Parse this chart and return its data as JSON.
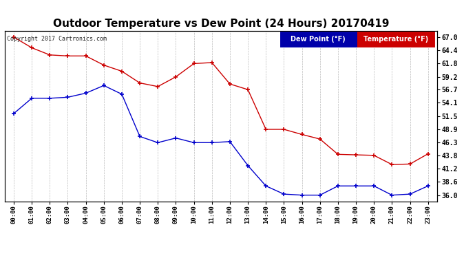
{
  "title": "Outdoor Temperature vs Dew Point (24 Hours) 20170419",
  "copyright": "Copyright 2017 Cartronics.com",
  "x_labels": [
    "00:00",
    "01:00",
    "02:00",
    "03:00",
    "04:00",
    "05:00",
    "06:00",
    "07:00",
    "08:00",
    "09:00",
    "10:00",
    "11:00",
    "12:00",
    "13:00",
    "14:00",
    "15:00",
    "16:00",
    "17:00",
    "18:00",
    "19:00",
    "20:00",
    "21:00",
    "22:00",
    "23:00"
  ],
  "y_ticks": [
    36.0,
    38.6,
    41.2,
    43.8,
    46.3,
    48.9,
    51.5,
    54.1,
    56.7,
    59.2,
    61.8,
    64.4,
    67.0
  ],
  "ylim": [
    34.8,
    68.2
  ],
  "temp_color": "#cc0000",
  "dew_color": "#0000cc",
  "temp_label": "Temperature (°F)",
  "dew_label": "Dew Point (°F)",
  "temperature": [
    67.0,
    64.9,
    63.5,
    63.3,
    63.3,
    61.5,
    60.3,
    58.0,
    57.3,
    59.2,
    61.8,
    62.0,
    57.8,
    56.7,
    48.9,
    48.9,
    47.9,
    47.0,
    44.0,
    43.9,
    43.8,
    42.0,
    42.1,
    44.1
  ],
  "dew_point": [
    52.0,
    55.0,
    55.0,
    55.2,
    56.0,
    57.5,
    55.8,
    47.5,
    46.3,
    47.2,
    46.3,
    46.3,
    46.5,
    41.8,
    37.8,
    36.2,
    36.0,
    36.0,
    37.8,
    37.8,
    37.8,
    36.0,
    36.2,
    37.8
  ],
  "bg_color": "#ffffff",
  "plot_bg_color": "#ffffff",
  "grid_color": "#bbbbbb",
  "title_fontsize": 11,
  "legend_dew_bg": "#0000aa",
  "legend_temp_bg": "#cc0000",
  "border_color": "#000000"
}
